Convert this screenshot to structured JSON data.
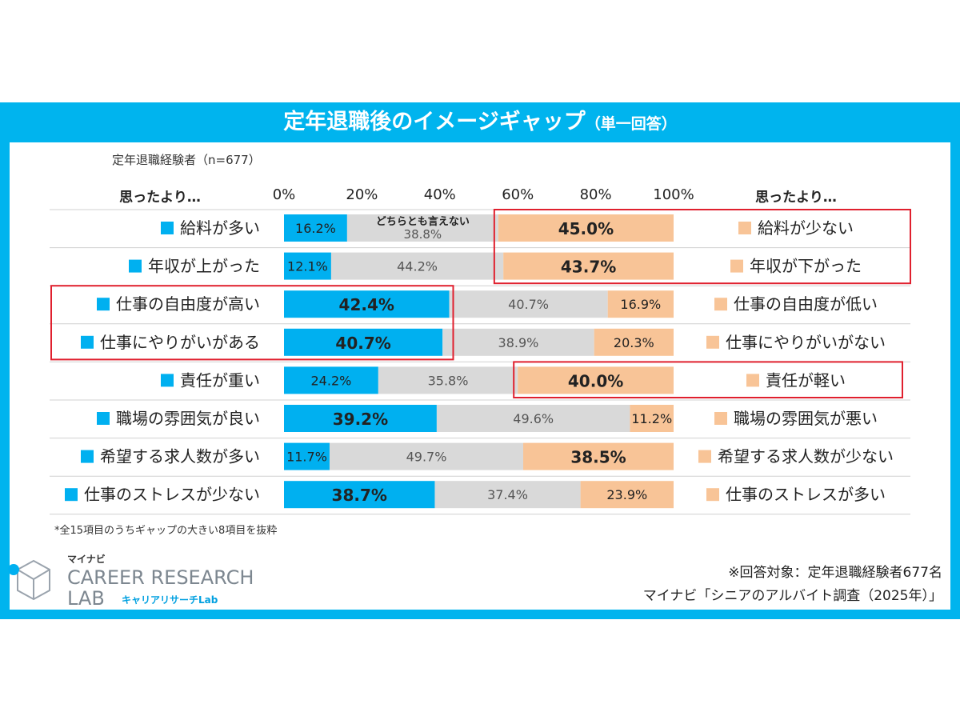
{
  "title": "定年退職後のイメージギャップ",
  "title_suffix": "（単一回答）",
  "respondents": "定年退職経験者（n=677）",
  "left_header": "思ったより…",
  "right_header": "思ったより…",
  "neutral_header": "どちらとも言えない",
  "footnote": "*全15項目のうちギャップの大きい8項目を抜粋",
  "source_line1": "※回答対象：定年退職経験者677名",
  "source_line2": "マイナビ「シニアのアルバイト調査（2025年）」",
  "logo": {
    "brand": "マイナビ",
    "line1": "CAREER RESEARCH",
    "line2": "LAB",
    "tagline": "キャリアリサーチLab"
  },
  "colors": {
    "frame": "#00b4ee",
    "left": "#00b0f0",
    "neutral": "#d9d9d9",
    "right": "#f8c497",
    "highlight_box": "#e0202e"
  },
  "chart_data": {
    "type": "bar",
    "orientation": "horizontal-stacked-100",
    "xlim": [
      0,
      100
    ],
    "xticks": [
      "0%",
      "20%",
      "40%",
      "60%",
      "80%",
      "100%"
    ],
    "series": [
      {
        "name": "left",
        "values": [
          16.2,
          12.1,
          42.4,
          40.7,
          24.2,
          39.2,
          11.7,
          38.7
        ]
      },
      {
        "name": "どちらとも言えない",
        "values": [
          38.8,
          44.2,
          40.7,
          38.9,
          35.8,
          49.6,
          49.7,
          37.4
        ]
      },
      {
        "name": "right",
        "values": [
          45.0,
          43.7,
          16.9,
          20.3,
          40.0,
          11.2,
          38.5,
          23.9
        ]
      }
    ],
    "left_labels": [
      "給料が多い",
      "年収が上がった",
      "仕事の自由度が高い",
      "仕事にやりがいがある",
      "責任が重い",
      "職場の雰囲気が良い",
      "希望する求人数が多い",
      "仕事のストレスが少ない"
    ],
    "right_labels": [
      "給料が少ない",
      "年収が下がった",
      "仕事の自由度が低い",
      "仕事にやりがいがない",
      "責任が軽い",
      "職場の雰囲気が悪い",
      "希望する求人数が少ない",
      "仕事のストレスが多い"
    ],
    "highlighted": [
      {
        "side": "right",
        "rows": [
          0,
          1
        ]
      },
      {
        "side": "left",
        "rows": [
          2,
          3
        ]
      },
      {
        "side": "right",
        "rows": [
          4,
          4
        ]
      }
    ]
  }
}
